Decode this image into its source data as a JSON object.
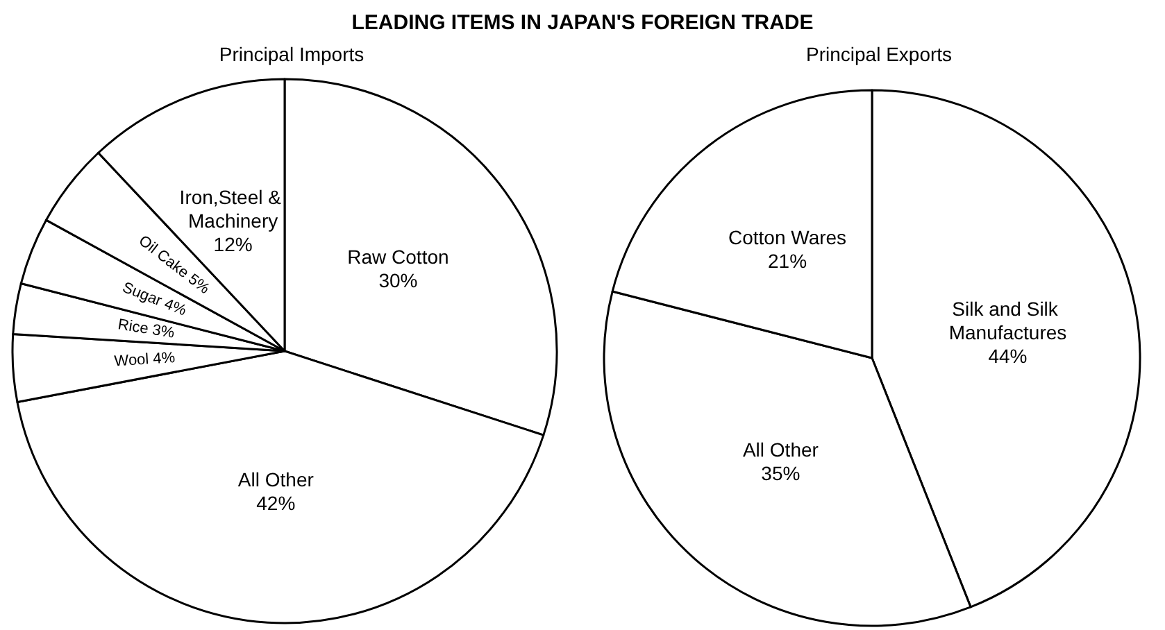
{
  "chart_data": [
    {
      "type": "pie",
      "title": "LEADING ITEMS IN JAPAN'S FOREIGN TRADE",
      "subtitle": "Principal Imports",
      "categories": [
        "Raw Cotton",
        "All Other",
        "Wool",
        "Rice",
        "Sugar",
        "Oil Cake",
        "Iron,Steel & Machinery"
      ],
      "values": [
        30,
        42,
        4,
        3,
        4,
        5,
        12
      ],
      "value_labels": [
        "30%",
        "42%",
        "4%",
        "3%",
        "4%",
        "5%",
        "12%"
      ],
      "colors": [
        "#ffffff",
        "#ffffff",
        "#ffffff",
        "#ffffff",
        "#ffffff",
        "#ffffff",
        "#ffffff"
      ]
    },
    {
      "type": "pie",
      "subtitle": "Principal Exports",
      "categories": [
        "Silk and Silk Manufactures",
        "All Other",
        "Cotton Wares"
      ],
      "values": [
        44,
        35,
        21
      ],
      "value_labels": [
        "44%",
        "35%",
        "21%"
      ],
      "colors": [
        "#ffffff",
        "#ffffff",
        "#ffffff"
      ]
    }
  ]
}
